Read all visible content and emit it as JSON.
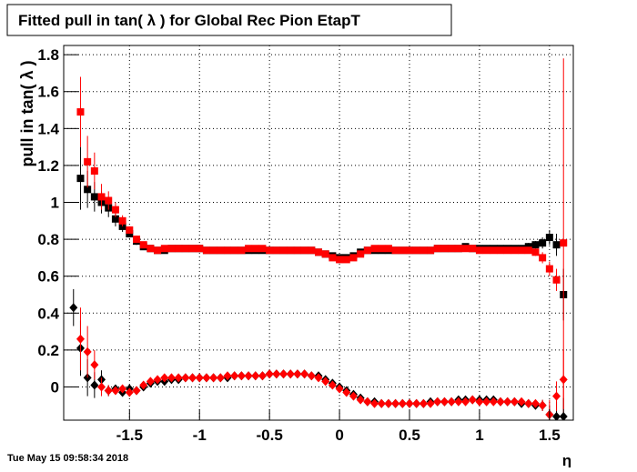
{
  "chart_data": {
    "type": "scatter",
    "title": "Fitted pull in tan( λ ) for Global Rec Pion EtapT",
    "y_label": "pull in tan( λ )",
    "x_label": "η",
    "footer": "Tue May 15 09:58:34 2018",
    "xlim": [
      -1.97,
      1.67
    ],
    "ylim": [
      -0.18,
      1.85
    ],
    "xticks": [
      -1.5,
      -1,
      -0.5,
      0,
      0.5,
      1,
      1.5
    ],
    "yticks": [
      0,
      0.2,
      0.4,
      0.6,
      0.8,
      1,
      1.2,
      1.4,
      1.6,
      1.8
    ],
    "grid": true,
    "x": [
      -1.9,
      -1.85,
      -1.8,
      -1.75,
      -1.7,
      -1.65,
      -1.6,
      -1.55,
      -1.5,
      -1.45,
      -1.4,
      -1.35,
      -1.3,
      -1.25,
      -1.2,
      -1.15,
      -1.1,
      -1.05,
      -1,
      -0.95,
      -0.9,
      -0.85,
      -0.8,
      -0.75,
      -0.7,
      -0.65,
      -0.6,
      -0.55,
      -0.5,
      -0.45,
      -0.4,
      -0.35,
      -0.3,
      -0.25,
      -0.2,
      -0.15,
      -0.1,
      -0.05,
      0,
      0.05,
      0.1,
      0.15,
      0.2,
      0.25,
      0.3,
      0.35,
      0.4,
      0.45,
      0.5,
      0.55,
      0.6,
      0.65,
      0.7,
      0.75,
      0.8,
      0.85,
      0.9,
      0.95,
      1,
      1.05,
      1.1,
      1.15,
      1.2,
      1.25,
      1.3,
      1.35,
      1.4,
      1.45,
      1.5,
      1.55,
      1.6
    ],
    "series": [
      {
        "color": "#000000",
        "marker": "square",
        "values": [
          null,
          1.13,
          1.07,
          1.03,
          1.0,
          0.97,
          0.91,
          0.87,
          0.83,
          0.79,
          0.76,
          0.75,
          0.74,
          0.74,
          0.75,
          0.75,
          0.75,
          0.75,
          0.75,
          0.74,
          0.74,
          0.74,
          0.74,
          0.74,
          0.74,
          0.74,
          0.74,
          0.74,
          0.74,
          0.74,
          0.74,
          0.74,
          0.74,
          0.74,
          0.74,
          0.73,
          0.72,
          0.71,
          0.7,
          0.7,
          0.71,
          0.73,
          0.74,
          0.74,
          0.74,
          0.74,
          0.74,
          0.74,
          0.74,
          0.74,
          0.74,
          0.74,
          0.75,
          0.75,
          0.75,
          0.75,
          0.76,
          0.75,
          0.75,
          0.75,
          0.75,
          0.75,
          0.75,
          0.75,
          0.75,
          0.76,
          0.77,
          0.78,
          0.81,
          0.77,
          0.5
        ],
        "errors": [
          null,
          0.17,
          0.1,
          0.08,
          0.06,
          0.05,
          0.04,
          0.03,
          0.02,
          0.02,
          0.01,
          0.01,
          0.01,
          0.01,
          0.01,
          0.01,
          0.01,
          0.01,
          0.01,
          0.01,
          0.01,
          0.01,
          0.01,
          0.01,
          0.01,
          0.01,
          0.01,
          0.01,
          0.01,
          0.01,
          0.01,
          0.01,
          0.01,
          0.01,
          0.01,
          0.01,
          0.01,
          0.01,
          0.01,
          0.01,
          0.01,
          0.01,
          0.01,
          0.01,
          0.01,
          0.01,
          0.01,
          0.01,
          0.01,
          0.01,
          0.01,
          0.01,
          0.01,
          0.01,
          0.01,
          0.01,
          0.01,
          0.01,
          0.01,
          0.01,
          0.01,
          0.01,
          0.01,
          0.01,
          0.01,
          0.02,
          0.02,
          0.03,
          0.04,
          0.06,
          0.14
        ]
      },
      {
        "color": "#ff0000",
        "marker": "square",
        "values": [
          null,
          1.49,
          1.22,
          1.17,
          1.03,
          1.01,
          0.96,
          0.9,
          0.85,
          0.8,
          0.77,
          0.75,
          0.74,
          0.75,
          0.75,
          0.75,
          0.75,
          0.75,
          0.75,
          0.74,
          0.74,
          0.74,
          0.74,
          0.74,
          0.74,
          0.75,
          0.75,
          0.75,
          0.74,
          0.74,
          0.74,
          0.74,
          0.74,
          0.74,
          0.74,
          0.73,
          0.72,
          0.7,
          0.69,
          0.69,
          0.7,
          0.72,
          0.74,
          0.75,
          0.75,
          0.75,
          0.74,
          0.74,
          0.74,
          0.74,
          0.74,
          0.74,
          0.75,
          0.75,
          0.75,
          0.75,
          0.75,
          0.75,
          0.74,
          0.74,
          0.74,
          0.74,
          0.74,
          0.74,
          0.74,
          0.74,
          0.73,
          0.7,
          0.64,
          0.58,
          0.78
        ],
        "errors": [
          null,
          0.19,
          0.14,
          0.1,
          0.07,
          0.05,
          0.04,
          0.03,
          0.02,
          0.02,
          0.01,
          0.01,
          0.01,
          0.01,
          0.01,
          0.01,
          0.01,
          0.01,
          0.01,
          0.01,
          0.01,
          0.01,
          0.01,
          0.01,
          0.01,
          0.01,
          0.01,
          0.01,
          0.01,
          0.01,
          0.01,
          0.01,
          0.01,
          0.01,
          0.01,
          0.01,
          0.01,
          0.01,
          0.01,
          0.01,
          0.01,
          0.01,
          0.01,
          0.01,
          0.01,
          0.01,
          0.01,
          0.01,
          0.01,
          0.01,
          0.01,
          0.01,
          0.01,
          0.01,
          0.01,
          0.01,
          0.01,
          0.01,
          0.01,
          0.01,
          0.01,
          0.01,
          0.01,
          0.01,
          0.01,
          0.01,
          0.02,
          0.03,
          0.04,
          0.06,
          1.0
        ]
      },
      {
        "color": "#000000",
        "marker": "diamond",
        "values": [
          0.43,
          0.21,
          0.05,
          0.01,
          0.04,
          -0.02,
          -0.01,
          -0.03,
          -0.01,
          -0.02,
          0.0,
          0.02,
          0.03,
          0.03,
          0.04,
          0.04,
          0.05,
          0.05,
          0.05,
          0.05,
          0.05,
          0.05,
          0.05,
          0.06,
          0.06,
          0.06,
          0.06,
          0.06,
          0.07,
          0.07,
          0.07,
          0.07,
          0.07,
          0.07,
          0.06,
          0.06,
          0.04,
          0.02,
          0.0,
          -0.02,
          -0.04,
          -0.06,
          -0.08,
          -0.08,
          -0.09,
          -0.09,
          -0.09,
          -0.09,
          -0.09,
          -0.09,
          -0.09,
          -0.08,
          -0.08,
          -0.08,
          -0.08,
          -0.07,
          -0.07,
          -0.07,
          -0.07,
          -0.07,
          -0.07,
          -0.08,
          -0.08,
          -0.08,
          -0.09,
          -0.09,
          -0.1,
          -0.1,
          -0.15,
          -0.16,
          -0.16
        ],
        "errors": [
          0.1,
          0.15,
          0.1,
          0.07,
          0.05,
          0.03,
          0.02,
          0.02,
          0.01,
          0.01,
          0.01,
          0.01,
          0.01,
          0.01,
          0.01,
          0.01,
          0.01,
          0.01,
          0.01,
          0.01,
          0.01,
          0.01,
          0.01,
          0.01,
          0.01,
          0.01,
          0.01,
          0.01,
          0.01,
          0.01,
          0.01,
          0.01,
          0.01,
          0.01,
          0.01,
          0.01,
          0.01,
          0.01,
          0.01,
          0.01,
          0.01,
          0.01,
          0.01,
          0.01,
          0.01,
          0.01,
          0.01,
          0.01,
          0.01,
          0.01,
          0.01,
          0.01,
          0.01,
          0.01,
          0.01,
          0.01,
          0.01,
          0.01,
          0.01,
          0.01,
          0.01,
          0.01,
          0.01,
          0.01,
          0.01,
          0.01,
          0.02,
          0.03,
          0.05,
          0.08,
          0.1
        ]
      },
      {
        "color": "#ff0000",
        "marker": "diamond",
        "values": [
          null,
          0.26,
          0.19,
          0.12,
          0.0,
          -0.02,
          -0.02,
          -0.01,
          -0.03,
          -0.02,
          0.01,
          0.03,
          0.04,
          0.05,
          0.05,
          0.05,
          0.05,
          0.05,
          0.05,
          0.05,
          0.05,
          0.05,
          0.06,
          0.06,
          0.06,
          0.06,
          0.06,
          0.06,
          0.07,
          0.07,
          0.07,
          0.07,
          0.07,
          0.07,
          0.06,
          0.05,
          0.03,
          0.01,
          -0.01,
          -0.03,
          -0.05,
          -0.07,
          -0.08,
          -0.09,
          -0.09,
          -0.09,
          -0.09,
          -0.09,
          -0.09,
          -0.09,
          -0.09,
          -0.09,
          -0.08,
          -0.08,
          -0.08,
          -0.08,
          -0.08,
          -0.07,
          -0.08,
          -0.08,
          -0.08,
          -0.08,
          -0.08,
          -0.08,
          -0.08,
          -0.09,
          -0.09,
          -0.1,
          -0.15,
          -0.05,
          0.04
        ],
        "errors": [
          null,
          0.17,
          0.14,
          0.08,
          0.05,
          0.03,
          0.02,
          0.02,
          0.01,
          0.01,
          0.01,
          0.01,
          0.01,
          0.01,
          0.01,
          0.01,
          0.01,
          0.01,
          0.01,
          0.01,
          0.01,
          0.01,
          0.01,
          0.01,
          0.01,
          0.01,
          0.01,
          0.01,
          0.01,
          0.01,
          0.01,
          0.01,
          0.01,
          0.01,
          0.01,
          0.01,
          0.01,
          0.01,
          0.01,
          0.01,
          0.01,
          0.01,
          0.01,
          0.01,
          0.01,
          0.01,
          0.01,
          0.01,
          0.01,
          0.01,
          0.01,
          0.01,
          0.01,
          0.01,
          0.01,
          0.01,
          0.01,
          0.01,
          0.01,
          0.01,
          0.01,
          0.01,
          0.01,
          0.01,
          0.01,
          0.01,
          0.02,
          0.03,
          0.08,
          0.08,
          0.16
        ]
      }
    ]
  }
}
